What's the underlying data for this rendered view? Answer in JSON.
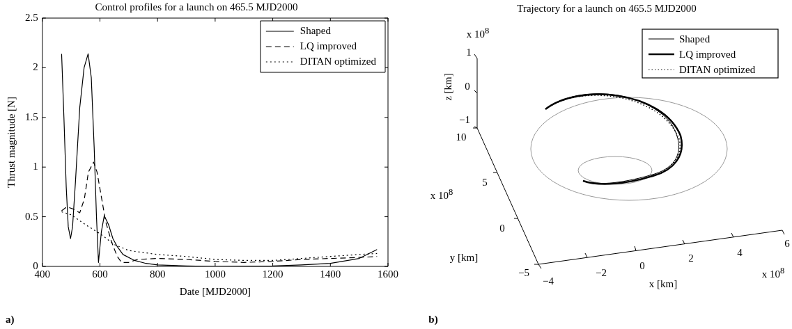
{
  "chart_data": [
    {
      "type": "line",
      "title": "Control profiles for a launch on 465.5 MJD2000",
      "xlabel": "Date [MJD2000]",
      "ylabel": "Thrust magnitude [N]",
      "xlim": [
        400,
        1600
      ],
      "xticks": [
        400,
        600,
        800,
        1000,
        1200,
        1400,
        1600
      ],
      "ylim": [
        0,
        2.5
      ],
      "yticks": [
        0,
        0.5,
        1,
        1.5,
        2,
        2.5
      ],
      "grid": false,
      "legend": "top right",
      "marker": "none",
      "series": [
        {
          "name": "Shaped",
          "color": "#000000",
          "line_style": "solid",
          "x": [
            467,
            475,
            483,
            490,
            498,
            505,
            515,
            530,
            545,
            559,
            570,
            580,
            588,
            595,
            605,
            615,
            630,
            645,
            660,
            680,
            720,
            760,
            800,
            900,
            1000,
            1200,
            1300,
            1400,
            1500,
            1562
          ],
          "values": [
            2.14,
            1.5,
            0.8,
            0.4,
            0.28,
            0.4,
            0.85,
            1.6,
            2.0,
            2.14,
            1.9,
            1.2,
            0.5,
            0.04,
            0.35,
            0.51,
            0.42,
            0.28,
            0.2,
            0.12,
            0.06,
            0.03,
            0.015,
            0.005,
            0.0,
            0.005,
            0.015,
            0.03,
            0.08,
            0.17
          ]
        },
        {
          "name": "LQ improved",
          "color": "#000000",
          "line_style": "dashed",
          "x": [
            467,
            485,
            505,
            530,
            546,
            560,
            578,
            590,
            605,
            620,
            640,
            660,
            675,
            700,
            730,
            800,
            900,
            1000,
            1100,
            1200,
            1300,
            1400,
            1500,
            1562
          ],
          "values": [
            0.56,
            0.6,
            0.58,
            0.54,
            0.68,
            0.95,
            1.05,
            0.95,
            0.7,
            0.45,
            0.25,
            0.1,
            0.04,
            0.04,
            0.07,
            0.08,
            0.07,
            0.05,
            0.04,
            0.05,
            0.07,
            0.08,
            0.09,
            0.1
          ]
        },
        {
          "name": "DITAN optimized",
          "color": "#000000",
          "line_style": "dotted",
          "x": [
            467,
            500,
            550,
            600,
            650,
            700,
            800,
            900,
            1000,
            1100,
            1200,
            1300,
            1400,
            1500,
            1562
          ],
          "values": [
            0.55,
            0.52,
            0.42,
            0.33,
            0.22,
            0.16,
            0.12,
            0.1,
            0.07,
            0.06,
            0.06,
            0.08,
            0.1,
            0.12,
            0.13
          ]
        }
      ],
      "annotations": [
        "a)"
      ]
    },
    {
      "type": "other",
      "title": "Trajectory for a launch on 465.5 MJD2000",
      "xlabel": "x [km]",
      "ylabel": "y [km]",
      "annotations": [
        "z [km]",
        "x 10$^{8}$",
        "1",
        "0",
        "−1",
        "10",
        "5",
        "0",
        "−5",
        "x 10$^{8}$",
        "−4",
        "−2",
        "0",
        "2",
        "4",
        "6",
        "x 10$^{8}$",
        "Shaped",
        "LQ improved",
        "DITAN optimized",
        "b)"
      ]
    }
  ]
}
